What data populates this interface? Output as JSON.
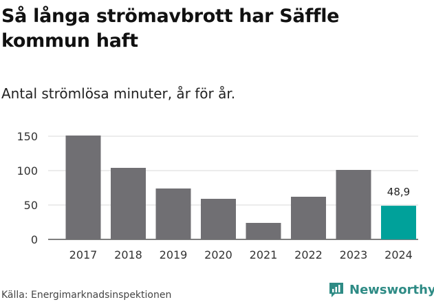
{
  "header": {
    "title": "Så långa strömavbrott har Säffle kommun haft",
    "subtitle": "Antal strömlösa minuter, år för år."
  },
  "footer": {
    "source": "Källa: Energimarknadsinspektionen",
    "brand": "Newsworthy",
    "brand_icon": "newsworthy-logo-icon"
  },
  "colors": {
    "bar": "#706f73",
    "highlight": "#00a19a",
    "grid": "#d9d9d9",
    "brand": "#2e8b85"
  },
  "chart_data": {
    "type": "bar",
    "title": "Så långa strömavbrott har Säffle kommun haft",
    "subtitle": "Antal strömlösa minuter, år för år.",
    "xlabel": "",
    "ylabel": "",
    "categories": [
      "2017",
      "2018",
      "2019",
      "2020",
      "2021",
      "2022",
      "2023",
      "2024"
    ],
    "values": [
      151,
      104,
      74,
      59,
      24,
      62,
      101,
      48.9
    ],
    "highlight_index": 7,
    "data_labels": [
      {
        "index": 7,
        "text": "48,9"
      }
    ],
    "yticks": [
      0,
      50,
      100,
      150
    ],
    "ylim": [
      0,
      160
    ],
    "grid": true,
    "legend": "none"
  }
}
